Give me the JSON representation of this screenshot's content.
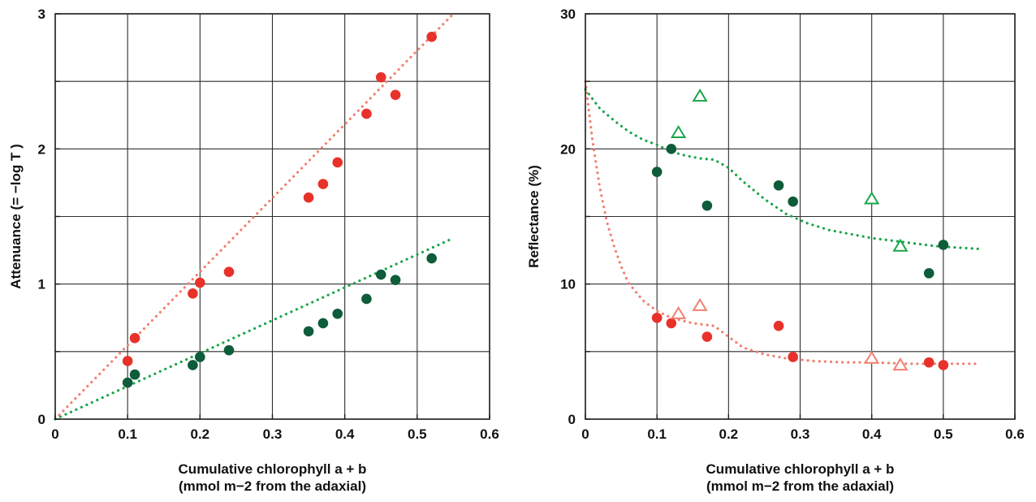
{
  "chart_data": [
    {
      "type": "scatter",
      "xlabel_line1": "Cumulative chlorophyll a + b",
      "xlabel_line2": "(mmol m−2 from the adaxial)",
      "ylabel": "Attenuance (= −log T )",
      "xlim": [
        0,
        0.6
      ],
      "ylim": [
        0,
        3
      ],
      "xticks": [
        "0",
        "0.1",
        "0.2",
        "0.3",
        "0.4",
        "0.5",
        "0.6"
      ],
      "xtick_values": [
        0,
        0.1,
        0.2,
        0.3,
        0.4,
        0.5,
        0.6
      ],
      "yticks": [
        "0",
        "1",
        "2",
        "3"
      ],
      "ytick_values": [
        0,
        1,
        2,
        3
      ],
      "y_minor_grid": [
        0.5,
        1.5,
        2.5
      ],
      "grid": true,
      "series": [
        {
          "color": "#e8312a",
          "marker": "filled-circle",
          "points": [
            [
              0.1,
              0.43
            ],
            [
              0.11,
              0.6
            ],
            [
              0.19,
              0.93
            ],
            [
              0.2,
              1.01
            ],
            [
              0.24,
              1.09
            ],
            [
              0.35,
              1.64
            ],
            [
              0.37,
              1.74
            ],
            [
              0.39,
              1.9
            ],
            [
              0.43,
              2.26
            ],
            [
              0.45,
              2.53
            ],
            [
              0.47,
              2.4
            ],
            [
              0.52,
              2.83
            ]
          ]
        },
        {
          "color": "#0e5c3a",
          "marker": "filled-circle",
          "points": [
            [
              0.1,
              0.27
            ],
            [
              0.11,
              0.33
            ],
            [
              0.19,
              0.4
            ],
            [
              0.2,
              0.46
            ],
            [
              0.24,
              0.51
            ],
            [
              0.35,
              0.65
            ],
            [
              0.37,
              0.71
            ],
            [
              0.39,
              0.78
            ],
            [
              0.43,
              0.89
            ],
            [
              0.45,
              1.07
            ],
            [
              0.47,
              1.03
            ],
            [
              0.52,
              1.19
            ]
          ]
        }
      ],
      "fit_lines": [
        {
          "color": "#f08070",
          "points": [
            [
              0,
              0
            ],
            [
              0.55,
              3.0
            ]
          ]
        },
        {
          "color": "#1aa54a",
          "points": [
            [
              0,
              0
            ],
            [
              0.55,
              1.34
            ]
          ]
        }
      ]
    },
    {
      "type": "scatter",
      "xlabel_line1": "Cumulative chlorophyll a + b",
      "xlabel_line2": "(mmol m−2 from the adaxial)",
      "ylabel": "Reflectance (%)",
      "xlim": [
        0,
        0.6
      ],
      "ylim": [
        0,
        30
      ],
      "xticks": [
        "0",
        "0.1",
        "0.2",
        "0.3",
        "0.4",
        "0.5",
        "0.6"
      ],
      "xtick_values": [
        0,
        0.1,
        0.2,
        0.3,
        0.4,
        0.5,
        0.6
      ],
      "yticks": [
        "0",
        "10",
        "20",
        "30"
      ],
      "ytick_values": [
        0,
        10,
        20,
        30
      ],
      "y_minor_grid": [
        5,
        15,
        25
      ],
      "grid": true,
      "series": [
        {
          "color": "#0e5c3a",
          "marker": "filled-circle",
          "points": [
            [
              0.1,
              18.3
            ],
            [
              0.12,
              20.0
            ],
            [
              0.17,
              15.8
            ],
            [
              0.27,
              17.3
            ],
            [
              0.29,
              16.1
            ],
            [
              0.48,
              10.8
            ],
            [
              0.5,
              12.9
            ]
          ]
        },
        {
          "color": "#1aa54a",
          "marker": "open-triangle",
          "points": [
            [
              0.13,
              21.2
            ],
            [
              0.16,
              23.9
            ],
            [
              0.4,
              16.3
            ],
            [
              0.44,
              12.8
            ]
          ]
        },
        {
          "color": "#e8312a",
          "marker": "filled-circle",
          "points": [
            [
              0.1,
              7.5
            ],
            [
              0.12,
              7.1
            ],
            [
              0.17,
              6.1
            ],
            [
              0.27,
              6.9
            ],
            [
              0.29,
              4.6
            ],
            [
              0.48,
              4.2
            ],
            [
              0.5,
              4.0
            ]
          ]
        },
        {
          "color": "#f08070",
          "marker": "open-triangle",
          "points": [
            [
              0.13,
              7.8
            ],
            [
              0.16,
              8.4
            ],
            [
              0.4,
              4.5
            ],
            [
              0.44,
              4.0
            ]
          ]
        }
      ],
      "fit_lines": [
        {
          "color": "#1aa54a",
          "points": [
            [
              0,
              24.4
            ],
            [
              0.02,
              23.0
            ],
            [
              0.04,
              22.1
            ],
            [
              0.06,
              21.3
            ],
            [
              0.08,
              20.7
            ],
            [
              0.1,
              20.3
            ],
            [
              0.12,
              19.8
            ],
            [
              0.14,
              19.5
            ],
            [
              0.16,
              19.3
            ],
            [
              0.18,
              19.2
            ],
            [
              0.2,
              18.6
            ],
            [
              0.22,
              17.6
            ],
            [
              0.25,
              16.3
            ],
            [
              0.28,
              15.2
            ],
            [
              0.31,
              14.5
            ],
            [
              0.34,
              14.0
            ],
            [
              0.37,
              13.7
            ],
            [
              0.4,
              13.4
            ],
            [
              0.43,
              13.2
            ],
            [
              0.46,
              13.0
            ],
            [
              0.49,
              12.8
            ],
            [
              0.52,
              12.7
            ],
            [
              0.55,
              12.6
            ]
          ]
        },
        {
          "color": "#f08070",
          "points": [
            [
              0,
              25.0
            ],
            [
              0.01,
              20.6
            ],
            [
              0.02,
              17.2
            ],
            [
              0.03,
              14.6
            ],
            [
              0.04,
              12.8
            ],
            [
              0.05,
              11.3
            ],
            [
              0.06,
              10.1
            ],
            [
              0.08,
              8.8
            ],
            [
              0.1,
              8.0
            ],
            [
              0.12,
              7.5
            ],
            [
              0.15,
              7.1
            ],
            [
              0.18,
              6.9
            ],
            [
              0.2,
              6.1
            ],
            [
              0.22,
              5.3
            ],
            [
              0.25,
              4.8
            ],
            [
              0.28,
              4.5
            ],
            [
              0.32,
              4.3
            ],
            [
              0.36,
              4.2
            ],
            [
              0.4,
              4.2
            ],
            [
              0.45,
              4.1
            ],
            [
              0.5,
              4.1
            ],
            [
              0.55,
              4.1
            ]
          ]
        }
      ]
    }
  ]
}
